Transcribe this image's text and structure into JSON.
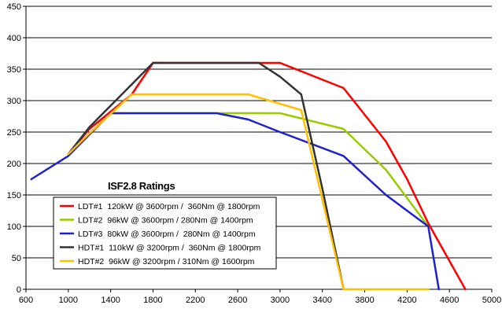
{
  "chart_data": {
    "type": "line",
    "title": "ISF2.8 Ratings",
    "xlabel": "",
    "ylabel": "",
    "xlim": [
      600,
      5000
    ],
    "ylim": [
      0,
      450
    ],
    "x_ticks": [
      "600",
      "1000",
      "1400",
      "1800",
      "2200",
      "2600",
      "3000",
      "3400",
      "3800",
      "4200",
      "4600",
      "5000"
    ],
    "y_ticks": [
      "0",
      "50",
      "100",
      "150",
      "200",
      "250",
      "300",
      "350",
      "400",
      "450"
    ],
    "grid": "horizontal",
    "legend_position": "bottom-left",
    "series": [
      {
        "name": "LDT#1  120kW @ 3600rpm /  360Nm @ 1800rpm",
        "color": "#ff0000",
        "points": [
          [
            1000,
            215
          ],
          [
            1200,
            255
          ],
          [
            1600,
            310
          ],
          [
            1800,
            360
          ],
          [
            2700,
            360
          ],
          [
            3000,
            360
          ],
          [
            3600,
            320
          ],
          [
            4000,
            235
          ],
          [
            4200,
            175
          ],
          [
            4400,
            105
          ],
          [
            4750,
            0
          ]
        ]
      },
      {
        "name": "LDT#2  96kW @ 3600rpm / 280Nm @ 1400rpm",
        "color": "#99cc00",
        "points": [
          [
            1000,
            215
          ],
          [
            1400,
            280
          ],
          [
            3000,
            280
          ],
          [
            3600,
            255
          ],
          [
            4000,
            190
          ],
          [
            4400,
            100
          ]
        ]
      },
      {
        "name": "LDT#3  80kW @ 3600rpm /  280Nm @ 1400rpm",
        "color": "#1e22cc",
        "points": [
          [
            650,
            175
          ],
          [
            1000,
            212
          ],
          [
            1400,
            280
          ],
          [
            2400,
            280
          ],
          [
            2700,
            270
          ],
          [
            3000,
            250
          ],
          [
            3600,
            212
          ],
          [
            4000,
            150
          ],
          [
            4400,
            100
          ],
          [
            4500,
            0
          ]
        ]
      },
      {
        "name": "HDT#1  110kW @ 3200rpm /  360Nm @ 1800rpm",
        "color": "#333333",
        "points": [
          [
            1000,
            215
          ],
          [
            1200,
            258
          ],
          [
            1800,
            360
          ],
          [
            2800,
            360
          ],
          [
            3000,
            338
          ],
          [
            3200,
            310
          ],
          [
            3400,
            160
          ],
          [
            3600,
            0
          ]
        ]
      },
      {
        "name": "HDT#2  96kW @ 3200rpm / 310Nm @ 1600rpm",
        "color": "#ffc000",
        "points": [
          [
            1000,
            215
          ],
          [
            1200,
            248
          ],
          [
            1600,
            310
          ],
          [
            2700,
            310
          ],
          [
            3000,
            295
          ],
          [
            3200,
            285
          ],
          [
            3600,
            0
          ],
          [
            4400,
            0
          ]
        ]
      }
    ]
  }
}
